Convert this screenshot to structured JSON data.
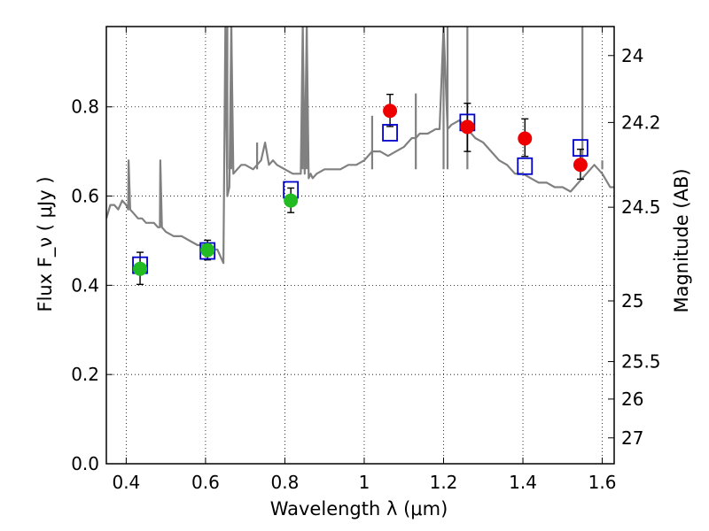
{
  "chart_data": {
    "type": "scatter",
    "title": "",
    "xlabel": "Wavelength  λ (μm)",
    "ylabel": "Flux  F_ν  ( μJy )",
    "ylabel_right": "Magnitude (AB)",
    "xlim": [
      0.35,
      1.63
    ],
    "ylim": [
      0.0,
      0.98
    ],
    "grid": true,
    "grid_style": "dotted",
    "x_ticks": [
      0.4,
      0.6,
      0.8,
      1.0,
      1.2,
      1.4,
      1.6
    ],
    "x_tick_labels": [
      "0.4",
      "0.6",
      "0.8",
      "1",
      "1.2",
      "1.4",
      "1.6"
    ],
    "y_ticks": [
      0.0,
      0.2,
      0.4,
      0.6,
      0.8
    ],
    "y_tick_labels": [
      "0.0",
      "0.2",
      "0.4",
      "0.6",
      "0.8"
    ],
    "right_ticks": [
      {
        "label": "24",
        "flux": 0.915
      },
      {
        "label": "24.2",
        "flux": 0.765
      },
      {
        "label": "24.5",
        "flux": 0.575
      },
      {
        "label": "25",
        "flux": 0.365
      },
      {
        "label": "25.5",
        "flux": 0.229
      },
      {
        "label": "26",
        "flux": 0.145
      },
      {
        "label": "27",
        "flux": 0.058
      }
    ],
    "series": [
      {
        "kind": "line",
        "color": "#808080",
        "x": [
          0.35,
          0.36,
          0.37,
          0.38,
          0.39,
          0.4,
          0.405,
          0.406,
          0.41,
          0.42,
          0.43,
          0.44,
          0.45,
          0.46,
          0.47,
          0.48,
          0.485,
          0.486,
          0.49,
          0.5,
          0.52,
          0.54,
          0.56,
          0.58,
          0.6,
          0.62,
          0.63,
          0.64,
          0.645,
          0.65,
          0.655,
          0.66,
          0.665,
          0.67,
          0.68,
          0.69,
          0.7,
          0.72,
          0.74,
          0.75,
          0.76,
          0.77,
          0.78,
          0.8,
          0.82,
          0.84,
          0.845,
          0.85,
          0.855,
          0.86,
          0.865,
          0.87,
          0.88,
          0.9,
          0.92,
          0.94,
          0.96,
          0.98,
          1.0,
          1.02,
          1.04,
          1.06,
          1.08,
          1.1,
          1.12,
          1.13,
          1.14,
          1.16,
          1.18,
          1.19,
          1.2,
          1.21,
          1.22,
          1.24,
          1.26,
          1.28,
          1.3,
          1.32,
          1.34,
          1.36,
          1.38,
          1.4,
          1.42,
          1.44,
          1.46,
          1.48,
          1.5,
          1.52,
          1.54,
          1.56,
          1.58,
          1.6,
          1.62,
          1.63
        ],
        "y": [
          0.55,
          0.58,
          0.58,
          0.57,
          0.59,
          0.58,
          0.57,
          0.68,
          0.57,
          0.56,
          0.55,
          0.55,
          0.54,
          0.54,
          0.54,
          0.53,
          0.53,
          0.68,
          0.53,
          0.52,
          0.51,
          0.51,
          0.5,
          0.49,
          0.49,
          0.48,
          0.48,
          0.46,
          0.45,
          0.98,
          0.6,
          0.62,
          0.98,
          0.65,
          0.66,
          0.67,
          0.67,
          0.66,
          0.68,
          0.72,
          0.67,
          0.68,
          0.67,
          0.66,
          0.65,
          0.65,
          0.98,
          0.65,
          0.98,
          0.64,
          0.65,
          0.64,
          0.65,
          0.66,
          0.66,
          0.66,
          0.67,
          0.67,
          0.68,
          0.7,
          0.7,
          0.69,
          0.7,
          0.71,
          0.73,
          0.73,
          0.74,
          0.74,
          0.75,
          0.75,
          0.98,
          0.75,
          0.76,
          0.77,
          0.75,
          0.73,
          0.72,
          0.7,
          0.68,
          0.67,
          0.65,
          0.65,
          0.64,
          0.63,
          0.63,
          0.62,
          0.62,
          0.61,
          0.63,
          0.65,
          0.67,
          0.65,
          0.62,
          0.62
        ],
        "spikes": [
          {
            "x": 0.655,
            "top": 0.98
          },
          {
            "x": 0.665,
            "top": 0.98
          },
          {
            "x": 0.73,
            "top": 0.72
          },
          {
            "x": 0.845,
            "top": 0.98
          },
          {
            "x": 0.855,
            "top": 0.98
          },
          {
            "x": 1.02,
            "top": 0.78
          },
          {
            "x": 1.13,
            "top": 0.83
          },
          {
            "x": 1.2,
            "top": 0.98
          },
          {
            "x": 1.21,
            "top": 0.98
          },
          {
            "x": 1.26,
            "top": 0.98
          },
          {
            "x": 1.55,
            "top": 0.98
          },
          {
            "x": 1.6,
            "top": 0.68
          }
        ]
      },
      {
        "kind": "model_points",
        "marker": "open-square",
        "color": "#0000cc",
        "x": [
          0.435,
          0.605,
          0.815,
          1.065,
          1.26,
          1.405,
          1.545
        ],
        "y": [
          0.445,
          0.477,
          0.614,
          0.742,
          0.765,
          0.667,
          0.708
        ]
      },
      {
        "kind": "observed_green",
        "marker": "filled-circle",
        "color": "#22bb22",
        "x": [
          0.435,
          0.605,
          0.815
        ],
        "y": [
          0.437,
          0.479,
          0.59
        ],
        "err_low": [
          0.035,
          0.022,
          0.027
        ],
        "err_high": [
          0.037,
          0.022,
          0.028
        ]
      },
      {
        "kind": "observed_red",
        "marker": "filled-circle",
        "color": "#ee0000",
        "x": [
          1.065,
          1.26,
          1.405,
          1.545
        ],
        "y": [
          0.791,
          0.755,
          0.729,
          0.67
        ],
        "err_low": [
          0.035,
          0.055,
          0.04,
          0.032
        ],
        "err_high": [
          0.037,
          0.053,
          0.044,
          0.035
        ]
      }
    ]
  }
}
